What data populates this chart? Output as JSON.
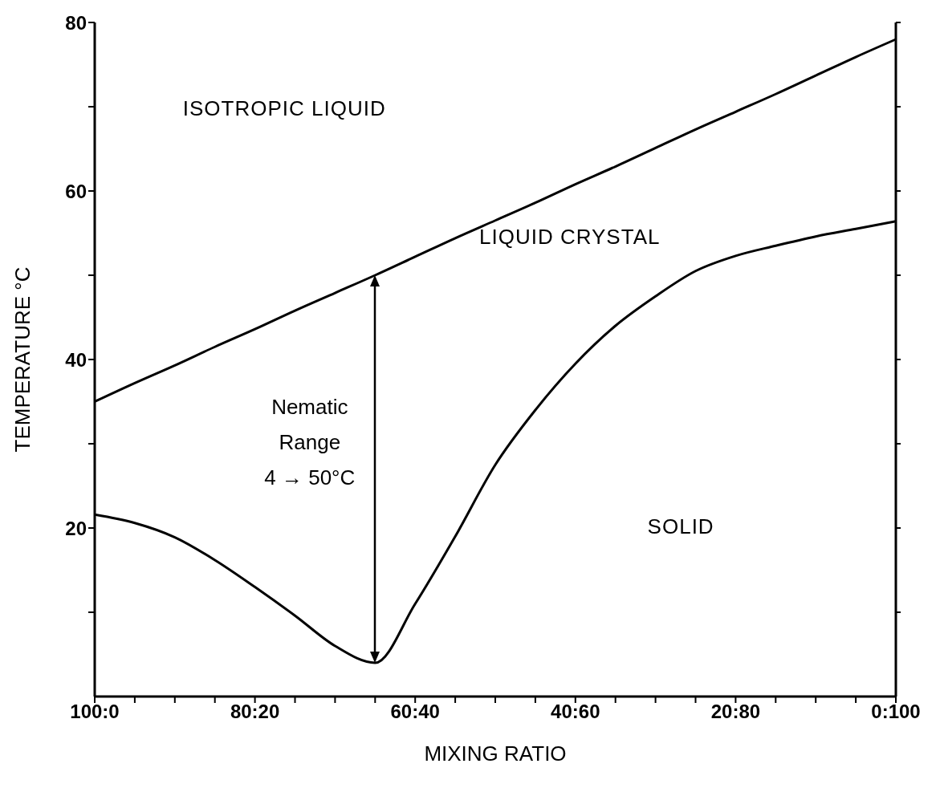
{
  "chart_data": {
    "type": "line",
    "xlabel": "MIXING RATIO",
    "ylabel": "TEMPERATURE °C",
    "categories": [
      "100:0",
      null,
      null,
      null,
      "80:20",
      null,
      null,
      null,
      "60:40",
      null,
      null,
      null,
      "40:60",
      null,
      null,
      null,
      "20:80",
      null,
      null,
      null,
      "0:100"
    ],
    "ylim": [
      0,
      80
    ],
    "yticks": [
      {
        "value": 10,
        "label": null
      },
      20,
      {
        "value": 30,
        "label": null
      },
      40,
      {
        "value": 50,
        "label": null
      },
      60,
      {
        "value": 70,
        "label": null
      },
      80
    ],
    "marker": "none",
    "series": [
      {
        "color": "#000000",
        "values": [
          35,
          37.2,
          39.3,
          41.5,
          43.6,
          45.8,
          47.9,
          50,
          52.2,
          54.4,
          56.5,
          58.6,
          60.8,
          62.9,
          65.1,
          67.3,
          69.4,
          71.5,
          73.7,
          75.9,
          78
        ]
      },
      {
        "color": "#000000",
        "values": [
          21.6,
          20.6,
          18.9,
          16.2,
          13,
          9.6,
          6,
          4,
          11,
          19,
          27.5,
          34,
          39.5,
          44,
          47.5,
          50.5,
          52.3,
          53.5,
          54.6,
          55.5,
          56.4
        ]
      }
    ],
    "annotations": [
      "ISOTROPIC LIQUID",
      "LIQUID CRYSTAL",
      "SOLID",
      "Nematic\nRange\n4 → 50°C"
    ]
  }
}
